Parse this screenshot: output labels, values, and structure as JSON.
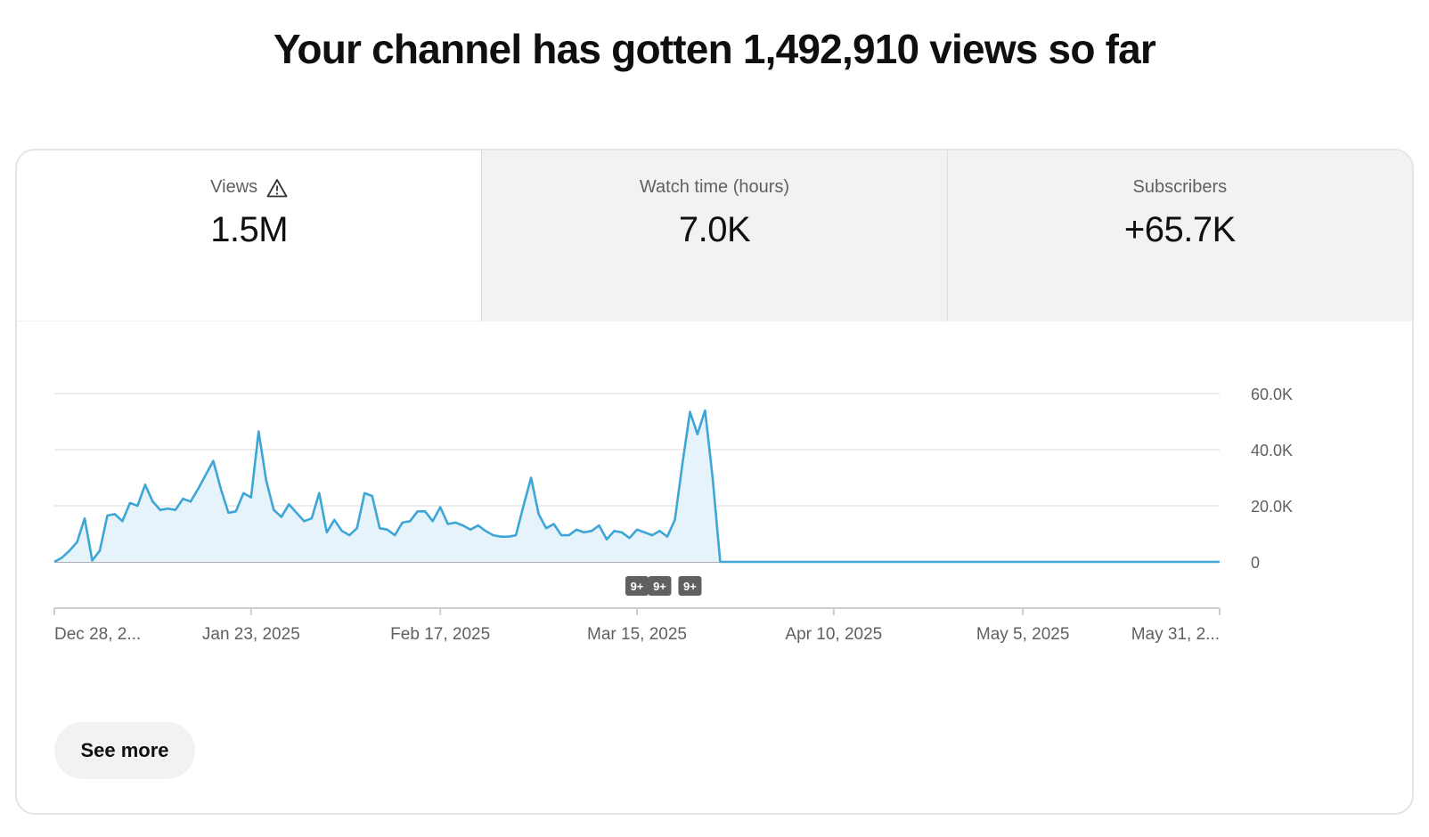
{
  "headline": "Your channel has gotten 1,492,910 views so far",
  "tabs": [
    {
      "label": "Views",
      "value": "1.5M",
      "icon": "warning-icon",
      "active": true
    },
    {
      "label": "Watch time (hours)",
      "value": "7.0K",
      "active": false
    },
    {
      "label": "Subscribers",
      "value": "+65.7K",
      "active": false
    }
  ],
  "see_more_label": "See more",
  "colors": {
    "line": "#3ea6d6",
    "fill": "#e6f3fa",
    "grid": "#e5e5e5",
    "axis": "#909090",
    "badge": "#606060"
  },
  "chart_data": {
    "type": "area",
    "y_ticks": [
      "60.0K",
      "40.0K",
      "20.0K",
      "0"
    ],
    "ylim": [
      0,
      60000
    ],
    "x_start": "2024-12-28",
    "x_end": "2025-05-31",
    "x_tick_dates": [
      "2024-12-28",
      "2025-01-23",
      "2025-02-17",
      "2025-03-15",
      "2025-04-10",
      "2025-05-05",
      "2025-05-31"
    ],
    "x_tick_labels": [
      "Dec 28, 2...",
      "Jan 23, 2025",
      "Feb 17, 2025",
      "Mar 15, 2025",
      "Apr 10, 2025",
      "May 5, 2025",
      "May 31, 2..."
    ],
    "badges": [
      {
        "date": "2025-03-15",
        "label": "9+"
      },
      {
        "date": "2025-03-18",
        "label": "9+"
      },
      {
        "date": "2025-03-22",
        "label": "9+"
      }
    ],
    "series": [
      {
        "values": [
          [
            "2024-12-28",
            0
          ],
          [
            "2024-12-29",
            1500
          ],
          [
            "2024-12-30",
            4000
          ],
          [
            "2024-12-31",
            7000
          ],
          [
            "2025-01-01",
            15500
          ],
          [
            "2025-01-02",
            500
          ],
          [
            "2025-01-03",
            4000
          ],
          [
            "2025-01-04",
            16500
          ],
          [
            "2025-01-05",
            17000
          ],
          [
            "2025-01-06",
            14500
          ],
          [
            "2025-01-07",
            21000
          ],
          [
            "2025-01-08",
            20000
          ],
          [
            "2025-01-09",
            27500
          ],
          [
            "2025-01-10",
            21500
          ],
          [
            "2025-01-11",
            18500
          ],
          [
            "2025-01-12",
            19000
          ],
          [
            "2025-01-13",
            18500
          ],
          [
            "2025-01-14",
            22500
          ],
          [
            "2025-01-15",
            21500
          ],
          [
            "2025-01-16",
            26000
          ],
          [
            "2025-01-17",
            31000
          ],
          [
            "2025-01-18",
            36000
          ],
          [
            "2025-01-19",
            26000
          ],
          [
            "2025-01-20",
            17500
          ],
          [
            "2025-01-21",
            18000
          ],
          [
            "2025-01-22",
            24500
          ],
          [
            "2025-01-23",
            23000
          ],
          [
            "2025-01-24",
            46500
          ],
          [
            "2025-01-25",
            29000
          ],
          [
            "2025-01-26",
            18500
          ],
          [
            "2025-01-27",
            16000
          ],
          [
            "2025-01-28",
            20500
          ],
          [
            "2025-01-29",
            17500
          ],
          [
            "2025-01-30",
            14500
          ],
          [
            "2025-01-31",
            15500
          ],
          [
            "2025-02-01",
            24500
          ],
          [
            "2025-02-02",
            10500
          ],
          [
            "2025-02-03",
            15000
          ],
          [
            "2025-02-04",
            11000
          ],
          [
            "2025-02-05",
            9500
          ],
          [
            "2025-02-06",
            12000
          ],
          [
            "2025-02-07",
            24500
          ],
          [
            "2025-02-08",
            23500
          ],
          [
            "2025-02-09",
            12000
          ],
          [
            "2025-02-10",
            11500
          ],
          [
            "2025-02-11",
            9500
          ],
          [
            "2025-02-12",
            14000
          ],
          [
            "2025-02-13",
            14500
          ],
          [
            "2025-02-14",
            18000
          ],
          [
            "2025-02-15",
            18000
          ],
          [
            "2025-02-16",
            14500
          ],
          [
            "2025-02-17",
            19500
          ],
          [
            "2025-02-18",
            13500
          ],
          [
            "2025-02-19",
            14000
          ],
          [
            "2025-02-20",
            13000
          ],
          [
            "2025-02-21",
            11500
          ],
          [
            "2025-02-22",
            13000
          ],
          [
            "2025-02-23",
            11000
          ],
          [
            "2025-02-24",
            9500
          ],
          [
            "2025-02-25",
            9000
          ],
          [
            "2025-02-26",
            9000
          ],
          [
            "2025-02-27",
            9500
          ],
          [
            "2025-02-28",
            20000
          ],
          [
            "2025-03-01",
            30000
          ],
          [
            "2025-03-02",
            17000
          ],
          [
            "2025-03-03",
            12000
          ],
          [
            "2025-03-04",
            13500
          ],
          [
            "2025-03-05",
            9500
          ],
          [
            "2025-03-06",
            9500
          ],
          [
            "2025-03-07",
            11500
          ],
          [
            "2025-03-08",
            10500
          ],
          [
            "2025-03-09",
            11000
          ],
          [
            "2025-03-10",
            13000
          ],
          [
            "2025-03-11",
            8000
          ],
          [
            "2025-03-12",
            11000
          ],
          [
            "2025-03-13",
            10500
          ],
          [
            "2025-03-14",
            8500
          ],
          [
            "2025-03-15",
            11500
          ],
          [
            "2025-03-16",
            10500
          ],
          [
            "2025-03-17",
            9500
          ],
          [
            "2025-03-18",
            11000
          ],
          [
            "2025-03-19",
            9000
          ],
          [
            "2025-03-20",
            15000
          ],
          [
            "2025-03-21",
            35000
          ],
          [
            "2025-03-22",
            53500
          ],
          [
            "2025-03-23",
            45500
          ],
          [
            "2025-03-24",
            54000
          ],
          [
            "2025-03-25",
            30000
          ],
          [
            "2025-03-26",
            0
          ],
          [
            "2025-04-15",
            0
          ],
          [
            "2025-05-05",
            0
          ],
          [
            "2025-05-31",
            0
          ]
        ]
      }
    ]
  }
}
